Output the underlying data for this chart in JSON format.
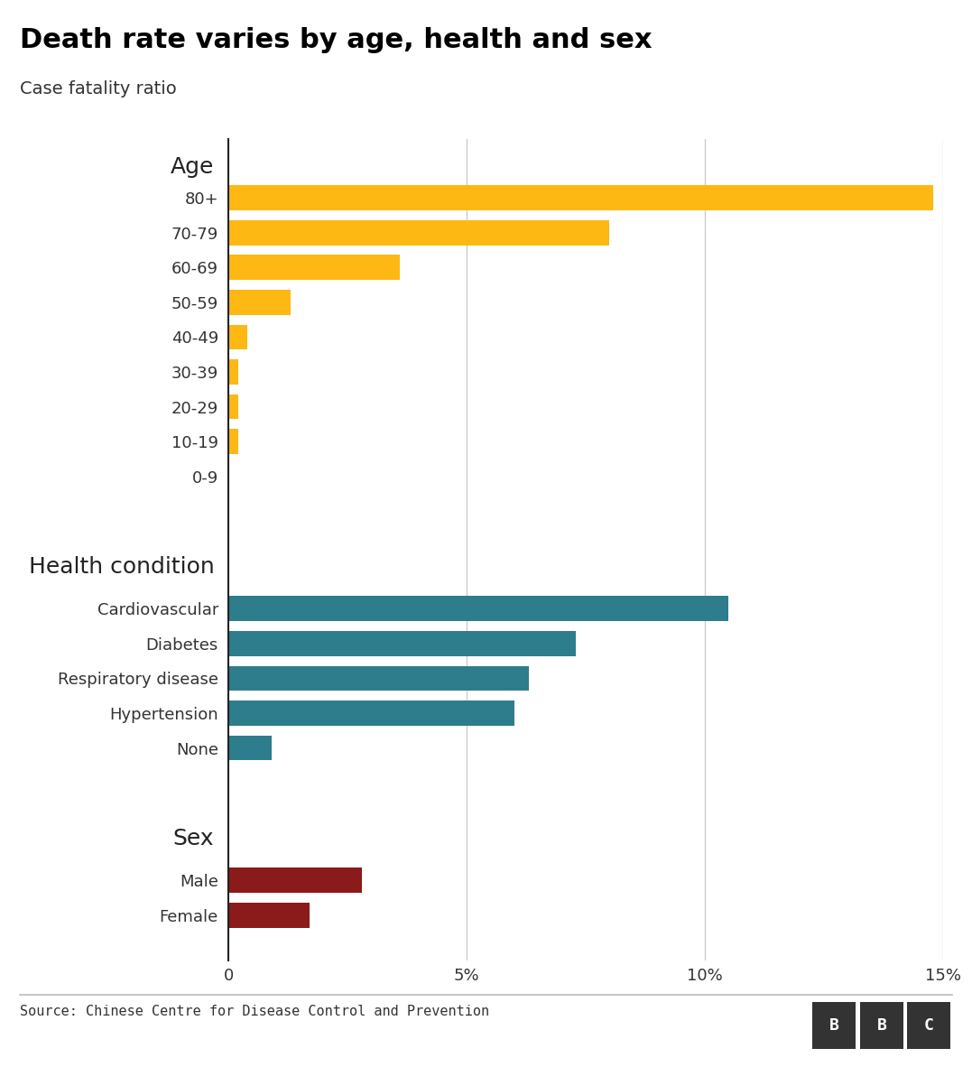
{
  "title": "Death rate varies by age, health and sex",
  "subtitle": "Case fatality ratio",
  "source": "Source: Chinese Centre for Disease Control and Prevention",
  "xlim": [
    0,
    15
  ],
  "xticks": [
    0,
    5,
    10,
    15
  ],
  "xticklabels": [
    "0",
    "5%",
    "10%",
    "15%"
  ],
  "age_section_label": "Age",
  "age_categories": [
    "80+",
    "70-79",
    "60-69",
    "50-59",
    "40-49",
    "30-39",
    "20-29",
    "10-19",
    "0-9"
  ],
  "age_values": [
    14.8,
    8.0,
    3.6,
    1.3,
    0.4,
    0.2,
    0.2,
    0.2,
    0.0
  ],
  "age_color": "#FDB813",
  "health_section_label": "Health condition",
  "health_categories": [
    "Cardiovascular",
    "Diabetes",
    "Respiratory disease",
    "Hypertension",
    "None"
  ],
  "health_values": [
    10.5,
    7.3,
    6.3,
    6.0,
    0.9
  ],
  "health_color": "#2E7D8C",
  "sex_section_label": "Sex",
  "sex_categories": [
    "Male",
    "Female"
  ],
  "sex_values": [
    2.8,
    1.7
  ],
  "sex_color": "#8B1A1A",
  "background_color": "#FFFFFF",
  "title_fontsize": 22,
  "subtitle_fontsize": 14,
  "section_label_fontsize": 18,
  "tick_fontsize": 13,
  "bar_label_fontsize": 13,
  "grid_color": "#CCCCCC",
  "axis_line_color": "#222222"
}
